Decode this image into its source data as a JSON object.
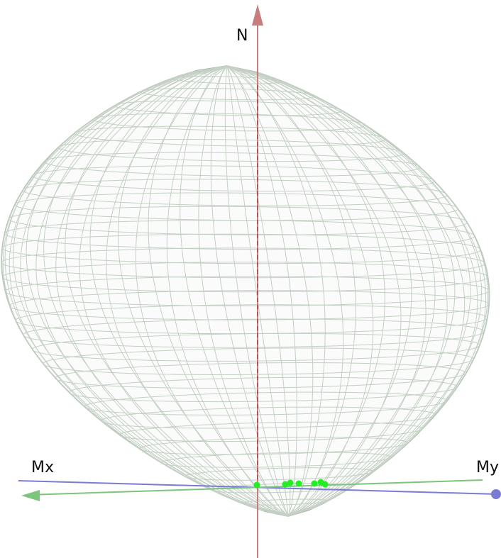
{
  "axes": {
    "n": {
      "label": "N",
      "color": "#c87d7d"
    },
    "mx": {
      "label": "Mx",
      "color": "#7dc47d"
    },
    "my": {
      "label": "My",
      "color": "#7b7bd4"
    }
  },
  "surface": {
    "meridians": 44,
    "parallels": 32,
    "mesh_color": "#c4d0c4",
    "outline_color": "#9aa89a",
    "fill_color": "#f6f9f6"
  },
  "markers": {
    "color": "#22ee22",
    "count": 7
  }
}
